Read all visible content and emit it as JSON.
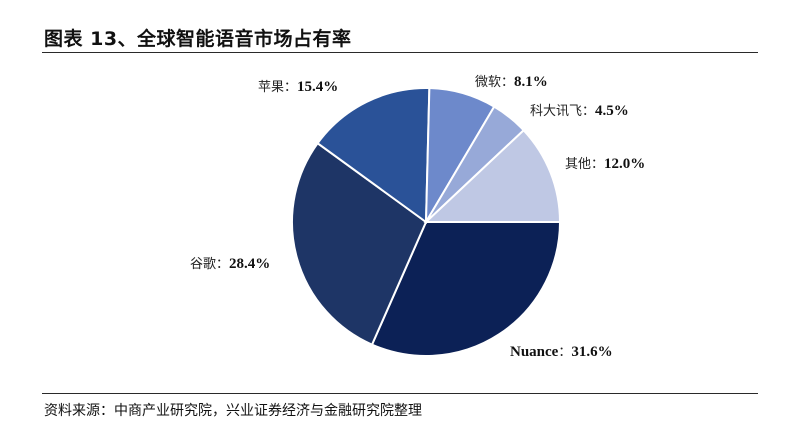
{
  "title": "图表 13、全球智能语音市场占有率",
  "source": "资料来源：中商产业研究院，兴业证券经济与金融研究院整理",
  "chart_data": {
    "type": "pie",
    "title": "图表 13、全球智能语音市场占有率",
    "slices": [
      {
        "label": "Nuance",
        "value": 31.6,
        "display": "31.6%",
        "color": "#0c2156"
      },
      {
        "label": "谷歌",
        "value": 28.4,
        "display": "28.4%",
        "color": "#1e3566"
      },
      {
        "label": "苹果",
        "value": 15.4,
        "display": "15.4%",
        "color": "#2a5298"
      },
      {
        "label": "微软",
        "value": 8.1,
        "display": "8.1%",
        "color": "#6d89cb"
      },
      {
        "label": "科大讯飞",
        "value": 4.5,
        "display": "4.5%",
        "color": "#97a9d8"
      },
      {
        "label": "其他",
        "value": 12.0,
        "display": "12.0%",
        "color": "#bfc8e4"
      }
    ]
  }
}
